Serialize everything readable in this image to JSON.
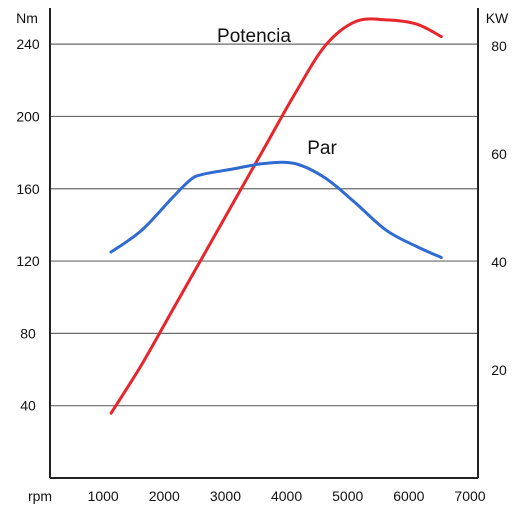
{
  "chart_data": {
    "type": "line",
    "left_axis_unit": "Nm",
    "right_axis_unit": "KW",
    "x_axis_unit": "rpm",
    "x_ticks": [
      1000,
      2000,
      3000,
      4000,
      5000,
      6000,
      7000
    ],
    "left_ticks": [
      40,
      80,
      120,
      160,
      200,
      240
    ],
    "right_ticks": [
      20,
      40,
      60,
      80
    ],
    "xlim": [
      0,
      7000
    ],
    "ylim_left": [
      0,
      260
    ],
    "ylim_right": [
      0,
      87
    ],
    "grid": true,
    "series": [
      {
        "name": "Potencia",
        "axis": "right",
        "color": "#e8252a",
        "x": [
          1000,
          1500,
          2000,
          2500,
          3000,
          3500,
          4000,
          4500,
          5000,
          5500,
          6000,
          6400
        ],
        "y": [
          12,
          21,
          31,
          41,
          51,
          61,
          71,
          80,
          84.5,
          84.8,
          84,
          81.7
        ]
      },
      {
        "name": "Par",
        "axis": "left",
        "color": "#2f6bd1",
        "x": [
          1000,
          1500,
          2000,
          2300,
          2500,
          3000,
          3500,
          4000,
          4500,
          5000,
          5500,
          6000,
          6400
        ],
        "y": [
          125,
          137,
          155,
          165,
          168,
          171,
          174,
          174,
          166,
          152,
          137,
          128,
          122
        ]
      }
    ]
  }
}
